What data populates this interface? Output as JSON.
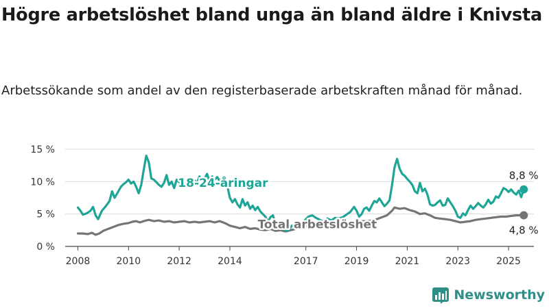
{
  "header": {
    "title": "Högre arbetslöshet bland unga än bland äldre i Knivsta",
    "subtitle": "Arbetssökande som andel av den registerbaserade arbetskraften månad för månad."
  },
  "brand": {
    "name": "Newsworthy",
    "color": "#2e8f88"
  },
  "chart_data": {
    "type": "line",
    "y_ticks": [
      "0 %",
      "5 %",
      "10 %",
      "15 %"
    ],
    "x_ticks": [
      "2008",
      "2010",
      "2012",
      "2014",
      "2017",
      "2019",
      "2021",
      "2023",
      "2025"
    ],
    "x_tick_years": [
      2008.0,
      2010.0,
      2012.0,
      2014.0,
      2017.0,
      2019.0,
      2021.0,
      2023.0,
      2025.0
    ],
    "ylim": [
      0,
      15
    ],
    "xlim": [
      2007.5,
      2026.0
    ],
    "grid": true,
    "series": [
      {
        "name": "18-24-åringar",
        "color": "#1fa596",
        "end_label": "8,8 %",
        "points": [
          [
            2008.0,
            6.0
          ],
          [
            2008.1,
            5.5
          ],
          [
            2008.2,
            4.9
          ],
          [
            2008.35,
            5.1
          ],
          [
            2008.5,
            5.5
          ],
          [
            2008.6,
            6.1
          ],
          [
            2008.7,
            4.8
          ],
          [
            2008.8,
            4.2
          ],
          [
            2008.95,
            5.5
          ],
          [
            2009.1,
            6.2
          ],
          [
            2009.25,
            7.0
          ],
          [
            2009.35,
            8.5
          ],
          [
            2009.45,
            7.5
          ],
          [
            2009.6,
            8.5
          ],
          [
            2009.7,
            9.2
          ],
          [
            2009.8,
            9.6
          ],
          [
            2009.9,
            9.9
          ],
          [
            2010.0,
            10.3
          ],
          [
            2010.1,
            9.7
          ],
          [
            2010.2,
            10.0
          ],
          [
            2010.3,
            9.2
          ],
          [
            2010.4,
            8.2
          ],
          [
            2010.5,
            9.5
          ],
          [
            2010.6,
            11.8
          ],
          [
            2010.7,
            14.0
          ],
          [
            2010.8,
            13.0
          ],
          [
            2010.9,
            10.5
          ],
          [
            2011.0,
            10.3
          ],
          [
            2011.1,
            9.9
          ],
          [
            2011.2,
            9.5
          ],
          [
            2011.3,
            9.2
          ],
          [
            2011.4,
            9.8
          ],
          [
            2011.5,
            11.0
          ],
          [
            2011.6,
            9.5
          ],
          [
            2011.7,
            10.0
          ],
          [
            2011.8,
            9.0
          ],
          [
            2011.9,
            10.3
          ],
          [
            2012.0,
            9.9
          ],
          [
            2012.1,
            10.2
          ],
          [
            2012.2,
            9.5
          ],
          [
            2012.3,
            9.8
          ],
          [
            2012.4,
            10.0
          ],
          [
            2012.5,
            9.4
          ],
          [
            2012.6,
            10.2
          ],
          [
            2012.7,
            9.8
          ],
          [
            2012.8,
            10.8
          ],
          [
            2012.9,
            10.2
          ],
          [
            2013.0,
            10.5
          ],
          [
            2013.1,
            11.2
          ],
          [
            2013.2,
            10.0
          ],
          [
            2013.3,
            10.8
          ],
          [
            2013.4,
            10.3
          ],
          [
            2013.5,
            10.7
          ],
          [
            2013.6,
            10.1
          ],
          [
            2013.7,
            10.5
          ],
          [
            2013.8,
            9.6
          ],
          [
            2013.9,
            9.3
          ],
          [
            2014.0,
            7.5
          ],
          [
            2014.1,
            6.8
          ],
          [
            2014.2,
            7.3
          ],
          [
            2014.3,
            6.5
          ],
          [
            2014.4,
            6.0
          ],
          [
            2014.5,
            7.3
          ],
          [
            2014.6,
            6.3
          ],
          [
            2014.7,
            6.8
          ],
          [
            2014.8,
            5.8
          ],
          [
            2014.9,
            6.3
          ],
          [
            2015.0,
            5.6
          ],
          [
            2015.1,
            6.1
          ],
          [
            2015.2,
            5.4
          ],
          [
            2015.3,
            5.0
          ],
          [
            2015.4,
            4.6
          ],
          [
            2015.5,
            3.8
          ],
          [
            2015.6,
            4.5
          ],
          [
            2015.7,
            4.8
          ],
          [
            2015.8,
            3.5
          ],
          [
            2015.9,
            2.7
          ],
          [
            2016.0,
            3.0
          ],
          [
            2016.15,
            2.6
          ],
          [
            2016.3,
            2.4
          ],
          [
            2016.45,
            3.2
          ],
          [
            2016.6,
            2.9
          ],
          [
            2016.75,
            3.6
          ],
          [
            2016.9,
            3.8
          ],
          [
            2017.0,
            4.2
          ],
          [
            2017.1,
            4.6
          ],
          [
            2017.25,
            4.8
          ],
          [
            2017.4,
            4.4
          ],
          [
            2017.55,
            4.1
          ],
          [
            2017.7,
            3.8
          ],
          [
            2017.85,
            4.3
          ],
          [
            2018.0,
            4.0
          ],
          [
            2018.15,
            4.4
          ],
          [
            2018.3,
            4.3
          ],
          [
            2018.45,
            4.5
          ],
          [
            2018.6,
            4.9
          ],
          [
            2018.75,
            5.3
          ],
          [
            2018.9,
            6.1
          ],
          [
            2019.0,
            5.5
          ],
          [
            2019.1,
            4.6
          ],
          [
            2019.2,
            5.0
          ],
          [
            2019.3,
            5.8
          ],
          [
            2019.4,
            6.0
          ],
          [
            2019.5,
            5.5
          ],
          [
            2019.6,
            6.3
          ],
          [
            2019.7,
            7.0
          ],
          [
            2019.8,
            6.8
          ],
          [
            2019.9,
            7.4
          ],
          [
            2020.0,
            6.8
          ],
          [
            2020.1,
            6.2
          ],
          [
            2020.2,
            6.6
          ],
          [
            2020.3,
            7.1
          ],
          [
            2020.4,
            9.5
          ],
          [
            2020.5,
            12.2
          ],
          [
            2020.6,
            13.5
          ],
          [
            2020.7,
            12.0
          ],
          [
            2020.8,
            11.2
          ],
          [
            2020.9,
            10.9
          ],
          [
            2021.0,
            10.4
          ],
          [
            2021.1,
            10.0
          ],
          [
            2021.2,
            9.5
          ],
          [
            2021.3,
            8.5
          ],
          [
            2021.4,
            8.2
          ],
          [
            2021.5,
            9.8
          ],
          [
            2021.6,
            8.5
          ],
          [
            2021.7,
            8.9
          ],
          [
            2021.8,
            8.0
          ],
          [
            2021.9,
            6.5
          ],
          [
            2022.0,
            6.3
          ],
          [
            2022.1,
            6.4
          ],
          [
            2022.2,
            6.8
          ],
          [
            2022.3,
            7.1
          ],
          [
            2022.4,
            6.3
          ],
          [
            2022.5,
            6.4
          ],
          [
            2022.6,
            7.4
          ],
          [
            2022.7,
            6.8
          ],
          [
            2022.8,
            6.2
          ],
          [
            2022.9,
            5.5
          ],
          [
            2023.0,
            4.6
          ],
          [
            2023.1,
            4.4
          ],
          [
            2023.2,
            5.1
          ],
          [
            2023.3,
            4.8
          ],
          [
            2023.4,
            5.6
          ],
          [
            2023.5,
            6.3
          ],
          [
            2023.6,
            5.8
          ],
          [
            2023.7,
            6.2
          ],
          [
            2023.8,
            6.7
          ],
          [
            2023.9,
            6.3
          ],
          [
            2024.0,
            6.0
          ],
          [
            2024.1,
            6.5
          ],
          [
            2024.2,
            7.2
          ],
          [
            2024.3,
            6.6
          ],
          [
            2024.4,
            6.9
          ],
          [
            2024.5,
            7.7
          ],
          [
            2024.6,
            7.5
          ],
          [
            2024.7,
            8.2
          ],
          [
            2024.8,
            9.0
          ],
          [
            2024.9,
            8.8
          ],
          [
            2025.0,
            8.4
          ],
          [
            2025.1,
            8.8
          ],
          [
            2025.2,
            8.3
          ],
          [
            2025.3,
            8.0
          ],
          [
            2025.4,
            8.6
          ],
          [
            2025.5,
            7.6
          ],
          [
            2025.6,
            8.8
          ]
        ]
      },
      {
        "name": "Total arbetslöshet",
        "color": "#757575",
        "end_label": "4,8 %",
        "points": [
          [
            2008.0,
            2.0
          ],
          [
            2008.2,
            2.0
          ],
          [
            2008.4,
            1.9
          ],
          [
            2008.55,
            2.1
          ],
          [
            2008.7,
            1.8
          ],
          [
            2008.85,
            2.0
          ],
          [
            2009.0,
            2.4
          ],
          [
            2009.2,
            2.7
          ],
          [
            2009.4,
            3.0
          ],
          [
            2009.6,
            3.3
          ],
          [
            2009.8,
            3.5
          ],
          [
            2010.0,
            3.6
          ],
          [
            2010.15,
            3.8
          ],
          [
            2010.3,
            3.9
          ],
          [
            2010.45,
            3.7
          ],
          [
            2010.6,
            3.9
          ],
          [
            2010.8,
            4.1
          ],
          [
            2011.0,
            3.9
          ],
          [
            2011.2,
            4.0
          ],
          [
            2011.4,
            3.8
          ],
          [
            2011.6,
            3.9
          ],
          [
            2011.8,
            3.7
          ],
          [
            2012.0,
            3.8
          ],
          [
            2012.2,
            3.9
          ],
          [
            2012.4,
            3.7
          ],
          [
            2012.6,
            3.8
          ],
          [
            2012.8,
            3.7
          ],
          [
            2013.0,
            3.8
          ],
          [
            2013.2,
            3.9
          ],
          [
            2013.4,
            3.7
          ],
          [
            2013.6,
            3.9
          ],
          [
            2013.8,
            3.6
          ],
          [
            2014.0,
            3.2
          ],
          [
            2014.2,
            3.0
          ],
          [
            2014.4,
            2.8
          ],
          [
            2014.6,
            3.0
          ],
          [
            2014.8,
            2.7
          ],
          [
            2015.0,
            2.8
          ],
          [
            2015.2,
            2.6
          ],
          [
            2015.4,
            2.5
          ],
          [
            2015.6,
            2.7
          ],
          [
            2015.8,
            2.4
          ],
          [
            2016.0,
            2.5
          ],
          [
            2016.2,
            2.3
          ],
          [
            2016.4,
            2.5
          ],
          [
            2016.6,
            2.7
          ],
          [
            2016.8,
            2.9
          ],
          [
            2017.0,
            3.1
          ],
          [
            2017.2,
            3.0
          ],
          [
            2017.4,
            3.2
          ],
          [
            2017.6,
            3.3
          ],
          [
            2017.8,
            3.3
          ],
          [
            2018.0,
            3.4
          ],
          [
            2018.2,
            3.5
          ],
          [
            2018.4,
            3.5
          ],
          [
            2018.6,
            3.6
          ],
          [
            2018.8,
            3.7
          ],
          [
            2019.0,
            3.8
          ],
          [
            2019.2,
            3.9
          ],
          [
            2019.4,
            3.9
          ],
          [
            2019.6,
            4.0
          ],
          [
            2019.8,
            4.2
          ],
          [
            2020.0,
            4.5
          ],
          [
            2020.2,
            4.8
          ],
          [
            2020.4,
            5.5
          ],
          [
            2020.5,
            6.0
          ],
          [
            2020.7,
            5.8
          ],
          [
            2020.9,
            5.9
          ],
          [
            2021.1,
            5.6
          ],
          [
            2021.3,
            5.4
          ],
          [
            2021.5,
            5.0
          ],
          [
            2021.7,
            5.1
          ],
          [
            2021.9,
            4.8
          ],
          [
            2022.1,
            4.4
          ],
          [
            2022.3,
            4.3
          ],
          [
            2022.5,
            4.2
          ],
          [
            2022.7,
            4.1
          ],
          [
            2022.9,
            3.9
          ],
          [
            2023.1,
            3.7
          ],
          [
            2023.3,
            3.8
          ],
          [
            2023.5,
            3.9
          ],
          [
            2023.7,
            4.1
          ],
          [
            2023.9,
            4.2
          ],
          [
            2024.1,
            4.3
          ],
          [
            2024.3,
            4.4
          ],
          [
            2024.5,
            4.5
          ],
          [
            2024.7,
            4.6
          ],
          [
            2024.9,
            4.6
          ],
          [
            2025.1,
            4.7
          ],
          [
            2025.3,
            4.8
          ],
          [
            2025.6,
            4.8
          ]
        ]
      }
    ]
  }
}
